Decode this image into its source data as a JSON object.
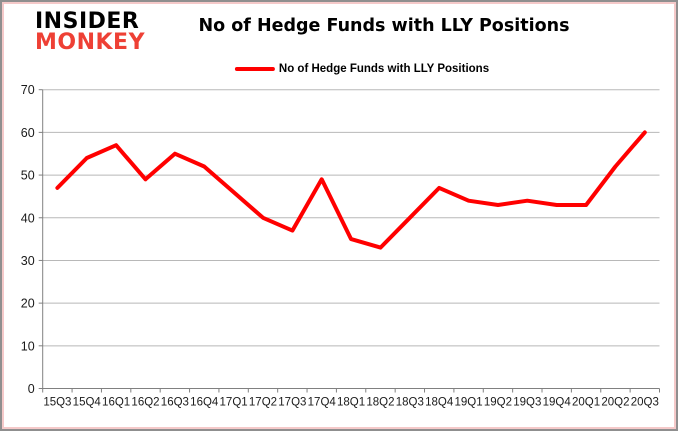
{
  "logo": {
    "line1": "INSIDER",
    "line2": "MONKEY",
    "color_line1": "#000000",
    "color_line2": "#ee4035"
  },
  "header": {
    "title": "No of Hedge Funds with LLY Positions"
  },
  "legend": {
    "label": "No of Hedge Funds with LLY Positions",
    "swatch_color": "#ff0000"
  },
  "chart_data": {
    "type": "line",
    "title": "No of Hedge Funds with LLY Positions",
    "legend_entries": [
      "No of Hedge Funds with LLY Positions"
    ],
    "legend_position": "top",
    "categories": [
      "15Q3",
      "15Q4",
      "16Q1",
      "16Q2",
      "16Q3",
      "16Q4",
      "17Q1",
      "17Q2",
      "17Q3",
      "17Q4",
      "18Q1",
      "18Q2",
      "18Q3",
      "18Q4",
      "19Q1",
      "19Q2",
      "19Q3",
      "19Q4",
      "20Q1",
      "20Q2",
      "20Q3"
    ],
    "series": [
      {
        "name": "No of Hedge Funds with LLY Positions",
        "color": "#ff0000",
        "values": [
          47,
          54,
          57,
          49,
          55,
          52,
          46,
          40,
          37,
          49,
          35,
          33,
          40,
          47,
          44,
          43,
          44,
          43,
          43,
          52,
          60
        ]
      }
    ],
    "xlabel": "",
    "ylabel": "",
    "ylim": [
      0,
      70
    ],
    "ytick_step": 10,
    "yticks": [
      0,
      10,
      20,
      30,
      40,
      50,
      60,
      70
    ],
    "grid": true,
    "gridline_color": "#b8b8b8",
    "axis_color": "#808080",
    "tick_label_color": "#1a1a1a"
  }
}
